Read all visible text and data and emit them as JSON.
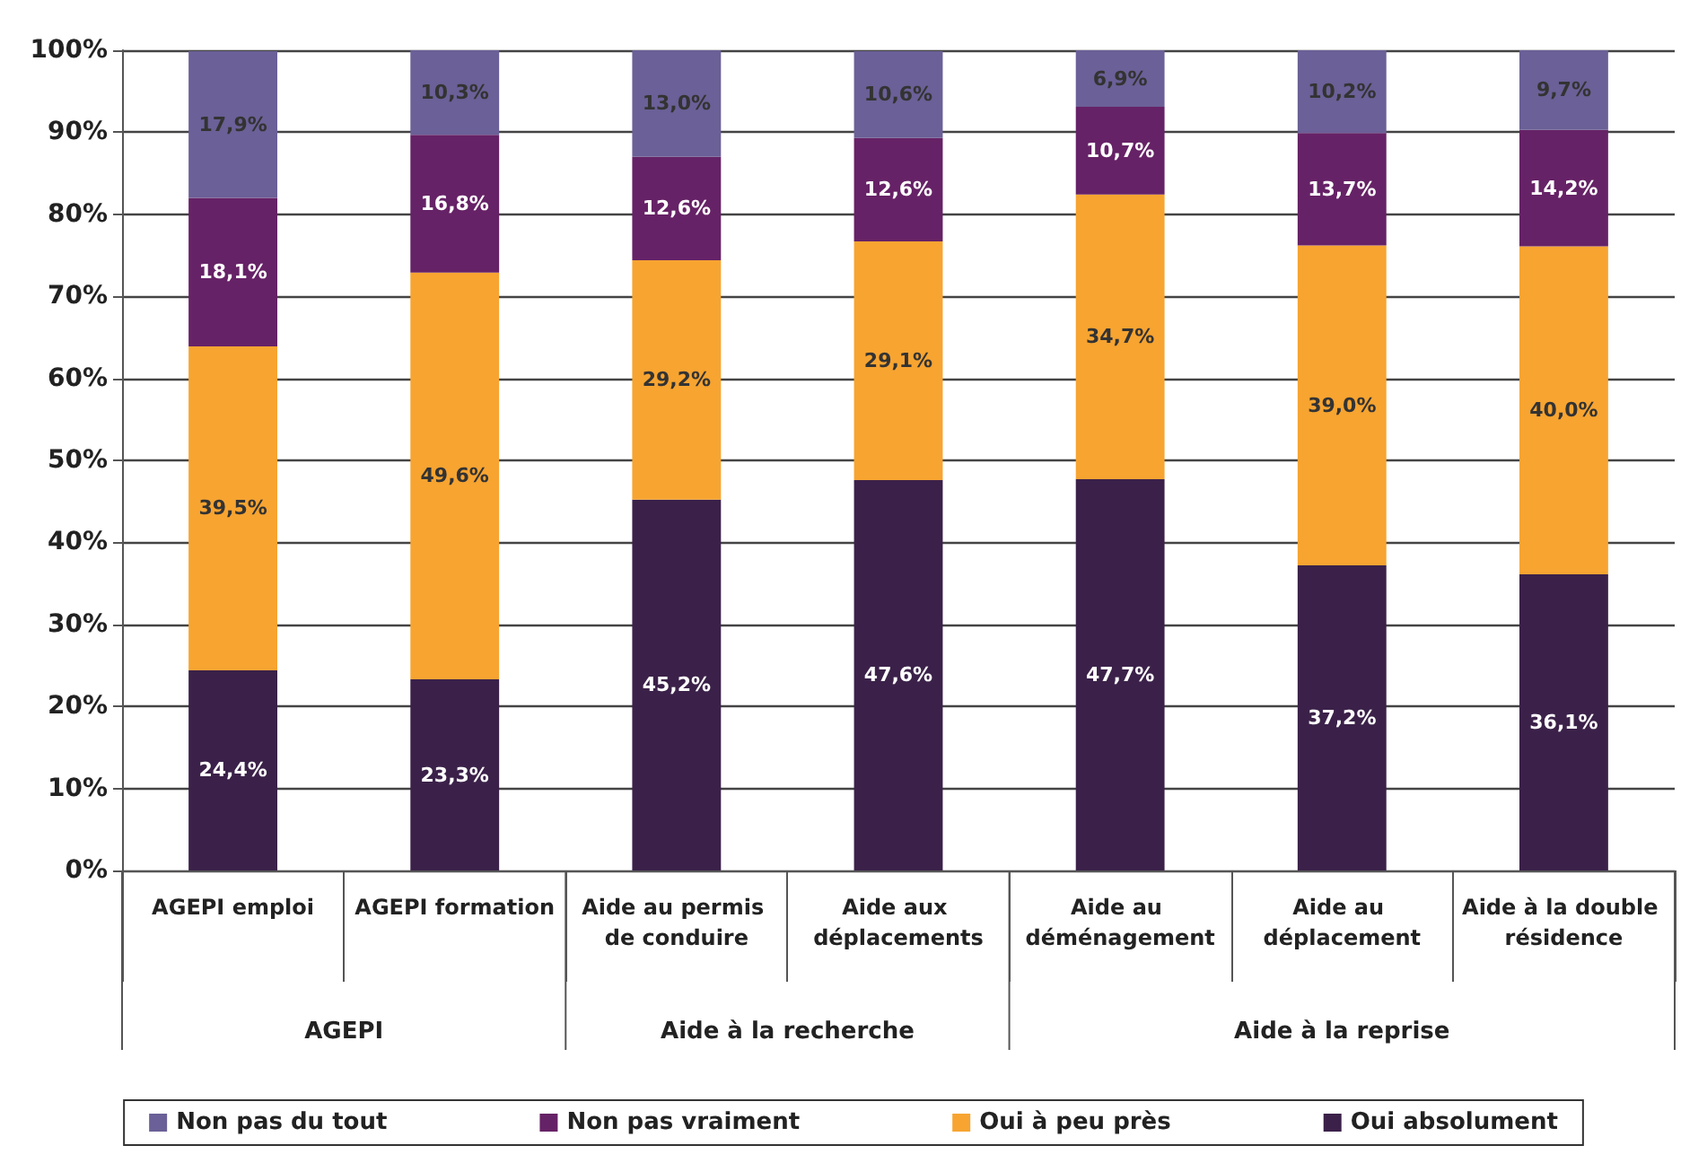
{
  "chart_data": {
    "type": "bar",
    "stacked": true,
    "categories": [
      "AGEPI emploi",
      "AGEPI formation",
      "Aide au permis de conduire",
      "Aide aux déplacements",
      "Aide au déménagement",
      "Aide au déplacement",
      "Aide à la double résidence"
    ],
    "series": [
      {
        "name": "Oui absolument",
        "color": "#3b2149",
        "values": [
          24.4,
          23.3,
          45.2,
          47.6,
          47.7,
          37.2,
          36.1
        ],
        "value_labels": [
          "24,4%",
          "23,3%",
          "45,2%",
          "47,6%",
          "47,7%",
          "37,2%",
          "36,1%"
        ]
      },
      {
        "name": "Oui à peu près",
        "color": "#f7a431",
        "values": [
          39.5,
          49.6,
          29.2,
          29.1,
          34.7,
          39.0,
          40.0
        ],
        "value_labels": [
          "39,5%",
          "49,6%",
          "29,2%",
          "29,1%",
          "34,7%",
          "39,0%",
          "40,0%"
        ]
      },
      {
        "name": "Non pas vraiment",
        "color": "#662266",
        "values": [
          18.1,
          16.8,
          12.6,
          12.6,
          10.7,
          13.7,
          14.2
        ],
        "value_labels": [
          "18,1%",
          "16,8%",
          "12,6%",
          "12,6%",
          "10,7%",
          "13,7%",
          "14,2%"
        ]
      },
      {
        "name": "Non pas du tout",
        "color": "#6b6097",
        "values": [
          17.9,
          10.3,
          13.0,
          10.6,
          6.9,
          10.2,
          9.7
        ],
        "value_labels": [
          "17,9%",
          "10,3%",
          "13,0%",
          "10,6%",
          "6,9%",
          "10,2%",
          "9,7%"
        ]
      }
    ],
    "ylim": [
      0,
      100
    ],
    "yticks": [
      {
        "value": 0,
        "label": "0%"
      },
      {
        "value": 10,
        "label": "10%"
      },
      {
        "value": 20,
        "label": "20%"
      },
      {
        "value": 30,
        "label": "30%"
      },
      {
        "value": 40,
        "label": "40%"
      },
      {
        "value": 50,
        "label": "50%"
      },
      {
        "value": 60,
        "label": "60%"
      },
      {
        "value": 70,
        "label": "70%"
      },
      {
        "value": 80,
        "label": "80%"
      },
      {
        "value": 90,
        "label": "90%"
      },
      {
        "value": 100,
        "label": "100%"
      }
    ],
    "annotations": [
      "AGEPI",
      "Aide à la recherche",
      "Aide à la reprise"
    ],
    "grid": "y",
    "legend": "bottom"
  }
}
